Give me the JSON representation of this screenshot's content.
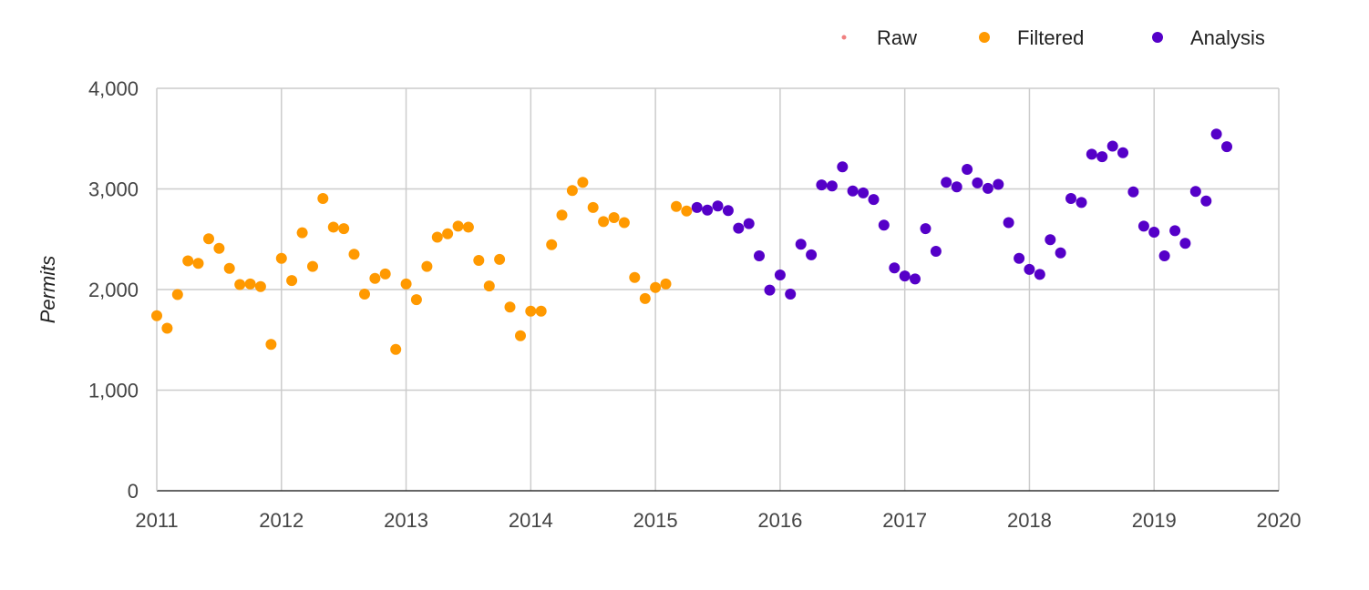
{
  "chart_data": {
    "type": "scatter",
    "title": "",
    "xlabel": "",
    "ylabel": "Permits",
    "xlim": [
      2011,
      2020
    ],
    "ylim": [
      0,
      4000
    ],
    "x_ticks": [
      "2011",
      "2012",
      "2013",
      "2014",
      "2015",
      "2016",
      "2017",
      "2018",
      "2019",
      "2020"
    ],
    "y_ticks": [
      "0",
      "1,000",
      "2,000",
      "3,000",
      "4,000"
    ],
    "grid": true,
    "legend_position": "top-right",
    "series": [
      {
        "name": "Raw",
        "color": "#f08080",
        "points": []
      },
      {
        "name": "Filtered",
        "color": "#ff9900",
        "points": [
          [
            2011.0,
            1740
          ],
          [
            2011.083,
            1615
          ],
          [
            2011.167,
            1950
          ],
          [
            2011.25,
            2285
          ],
          [
            2011.333,
            2260
          ],
          [
            2011.417,
            2505
          ],
          [
            2011.5,
            2410
          ],
          [
            2011.583,
            2210
          ],
          [
            2011.667,
            2050
          ],
          [
            2011.75,
            2055
          ],
          [
            2011.833,
            2030
          ],
          [
            2011.917,
            1455
          ],
          [
            2012.0,
            2310
          ],
          [
            2012.083,
            2090
          ],
          [
            2012.167,
            2565
          ],
          [
            2012.25,
            2230
          ],
          [
            2012.333,
            2905
          ],
          [
            2012.417,
            2620
          ],
          [
            2012.5,
            2605
          ],
          [
            2012.583,
            2350
          ],
          [
            2012.667,
            1955
          ],
          [
            2012.75,
            2110
          ],
          [
            2012.833,
            2155
          ],
          [
            2012.917,
            1405
          ],
          [
            2013.0,
            2055
          ],
          [
            2013.083,
            1900
          ],
          [
            2013.167,
            2230
          ],
          [
            2013.25,
            2520
          ],
          [
            2013.333,
            2555
          ],
          [
            2013.417,
            2630
          ],
          [
            2013.5,
            2620
          ],
          [
            2013.583,
            2290
          ],
          [
            2013.667,
            2035
          ],
          [
            2013.75,
            2300
          ],
          [
            2013.833,
            1825
          ],
          [
            2013.917,
            1540
          ],
          [
            2014.0,
            1785
          ],
          [
            2014.083,
            1785
          ],
          [
            2014.167,
            2445
          ],
          [
            2014.25,
            2740
          ],
          [
            2014.333,
            2985
          ],
          [
            2014.417,
            3065
          ],
          [
            2014.5,
            2815
          ],
          [
            2014.583,
            2675
          ],
          [
            2014.667,
            2715
          ],
          [
            2014.75,
            2665
          ],
          [
            2014.833,
            2120
          ],
          [
            2014.917,
            1910
          ],
          [
            2015.0,
            2020
          ],
          [
            2015.083,
            2055
          ],
          [
            2015.167,
            2825
          ],
          [
            2015.25,
            2780
          ]
        ]
      },
      {
        "name": "Analysis",
        "color": "#5500c8",
        "points": [
          [
            2015.333,
            2815
          ],
          [
            2015.417,
            2790
          ],
          [
            2015.5,
            2830
          ],
          [
            2015.583,
            2785
          ],
          [
            2015.667,
            2610
          ],
          [
            2015.75,
            2655
          ],
          [
            2015.833,
            2335
          ],
          [
            2015.917,
            1995
          ],
          [
            2016.0,
            2145
          ],
          [
            2016.083,
            1955
          ],
          [
            2016.167,
            2450
          ],
          [
            2016.25,
            2345
          ],
          [
            2016.333,
            3040
          ],
          [
            2016.417,
            3030
          ],
          [
            2016.5,
            3220
          ],
          [
            2016.583,
            2980
          ],
          [
            2016.667,
            2960
          ],
          [
            2016.75,
            2895
          ],
          [
            2016.833,
            2640
          ],
          [
            2016.917,
            2215
          ],
          [
            2017.0,
            2135
          ],
          [
            2017.083,
            2105
          ],
          [
            2017.167,
            2605
          ],
          [
            2017.25,
            2380
          ],
          [
            2017.333,
            3065
          ],
          [
            2017.417,
            3020
          ],
          [
            2017.5,
            3195
          ],
          [
            2017.583,
            3060
          ],
          [
            2017.667,
            3005
          ],
          [
            2017.75,
            3045
          ],
          [
            2017.833,
            2665
          ],
          [
            2017.917,
            2310
          ],
          [
            2018.0,
            2200
          ],
          [
            2018.083,
            2150
          ],
          [
            2018.167,
            2495
          ],
          [
            2018.25,
            2365
          ],
          [
            2018.333,
            2905
          ],
          [
            2018.417,
            2865
          ],
          [
            2018.5,
            3345
          ],
          [
            2018.583,
            3320
          ],
          [
            2018.667,
            3425
          ],
          [
            2018.75,
            3360
          ],
          [
            2018.833,
            2970
          ],
          [
            2018.917,
            2630
          ],
          [
            2019.0,
            2570
          ],
          [
            2019.083,
            2335
          ],
          [
            2019.167,
            2585
          ],
          [
            2019.25,
            2460
          ],
          [
            2019.333,
            2975
          ],
          [
            2019.417,
            2880
          ],
          [
            2019.5,
            3545
          ],
          [
            2019.583,
            3420
          ]
        ]
      }
    ]
  }
}
